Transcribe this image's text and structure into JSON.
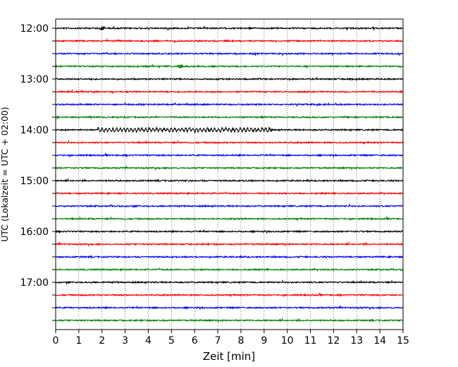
{
  "chart_data": {
    "type": "line",
    "title": "",
    "xlabel": "Zeit  [min]",
    "ylabel": "UTC (Lokalzeit = UTC + 02:00)",
    "xlim": [
      0,
      15
    ],
    "x_ticks": [
      "0",
      "1",
      "2",
      "3",
      "4",
      "5",
      "6",
      "7",
      "8",
      "9",
      "10",
      "11",
      "12",
      "13",
      "14",
      "15"
    ],
    "y_tick_labels": [
      "12:00",
      "13:00",
      "14:00",
      "15:00",
      "16:00",
      "17:00"
    ],
    "grid": "vertical dotted at each minute",
    "trace_interval_minutes": 15,
    "traces_start": "12:00",
    "traces_end": "17:45",
    "trace_color_cycle": [
      "#000000",
      "#ff0000",
      "#0000ff",
      "#008000"
    ],
    "active_events": [
      {
        "trace": "14:00",
        "x_range_min": [
          1.8,
          9.3
        ],
        "description": "enhanced oscillation"
      },
      {
        "trace": "12:45",
        "x_range_min": [
          5.3,
          5.5
        ],
        "description": "spike"
      },
      {
        "trace": "12:00",
        "x_range_min": [
          1.9,
          2.1
        ],
        "description": "spike"
      }
    ]
  }
}
